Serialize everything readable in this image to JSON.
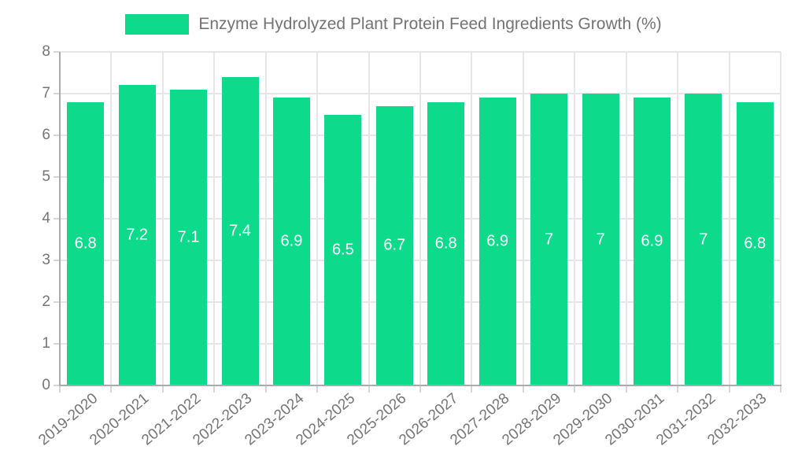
{
  "legend": {
    "label": "Enzyme Hydrolyzed Plant Protein Feed Ingredients Growth (%)",
    "swatch_color": "#0ddb8b"
  },
  "chart_data": {
    "type": "bar",
    "title": "Enzyme Hydrolyzed Plant Protein Feed Ingredients Growth (%)",
    "categories": [
      "2019-2020",
      "2020-2021",
      "2021-2022",
      "2022-2023",
      "2023-2024",
      "2024-2025",
      "2025-2026",
      "2026-2027",
      "2027-2028",
      "2028-2029",
      "2029-2030",
      "2030-2031",
      "2031-2032",
      "2032-2033"
    ],
    "values": [
      6.8,
      7.2,
      7.1,
      7.4,
      6.9,
      6.5,
      6.7,
      6.8,
      6.9,
      7,
      7,
      6.9,
      7,
      6.8
    ],
    "value_labels": [
      "6.8",
      "7.2",
      "7.1",
      "7.4",
      "6.9",
      "6.5",
      "6.7",
      "6.8",
      "6.9",
      "7",
      "7",
      "6.9",
      "7",
      "6.8"
    ],
    "xlabel": "",
    "ylabel": "",
    "ylim": [
      0,
      8
    ],
    "yticks": [
      0,
      1,
      2,
      3,
      4,
      5,
      6,
      7,
      8
    ],
    "grid": true,
    "legend_position": "top",
    "x_tick_rotation_deg": -40,
    "colors": {
      "bar": "#0ddb8b",
      "value_label": "#ffffff",
      "axis_text": "#757575",
      "grid_line": "#e6e6e6",
      "tick_mark": "#d6d6d6",
      "axis_line": "#ababab"
    }
  }
}
